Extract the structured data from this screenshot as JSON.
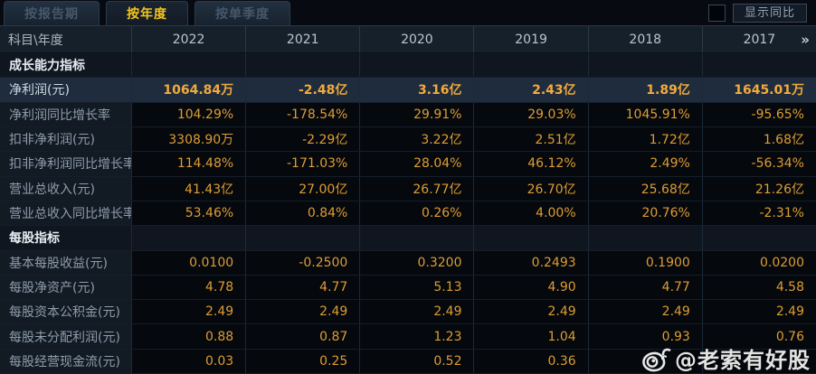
{
  "tabs": [
    {
      "label": "按报告期",
      "active": false
    },
    {
      "label": "按年度",
      "active": true
    },
    {
      "label": "按单季度",
      "active": false
    }
  ],
  "controls": {
    "show_yoy_label": "显示同比",
    "checkbox_checked": false
  },
  "table": {
    "corner_label": "科目\\年度",
    "years": [
      "2022",
      "2021",
      "2020",
      "2019",
      "2018",
      "2017"
    ],
    "more_icon": "»",
    "rows": [
      {
        "type": "section",
        "label": "成长能力指标",
        "values": [
          "",
          "",
          "",
          "",
          "",
          ""
        ]
      },
      {
        "type": "data",
        "highlight": true,
        "label": "净利润(元)",
        "values": [
          "1064.84万",
          "-2.48亿",
          "3.16亿",
          "2.43亿",
          "1.89亿",
          "1645.01万"
        ]
      },
      {
        "type": "data",
        "label": "净利润同比增长率",
        "values": [
          "104.29%",
          "-178.54%",
          "29.91%",
          "29.03%",
          "1045.91%",
          "-95.65%"
        ]
      },
      {
        "type": "data",
        "label": "扣非净利润(元)",
        "values": [
          "3308.90万",
          "-2.29亿",
          "3.22亿",
          "2.51亿",
          "1.72亿",
          "1.68亿"
        ]
      },
      {
        "type": "data",
        "label": "扣非净利润同比增长率",
        "values": [
          "114.48%",
          "-171.03%",
          "28.04%",
          "46.12%",
          "2.49%",
          "-56.34%"
        ]
      },
      {
        "type": "data",
        "label": "营业总收入(元)",
        "values": [
          "41.43亿",
          "27.00亿",
          "26.77亿",
          "26.70亿",
          "25.68亿",
          "21.26亿"
        ]
      },
      {
        "type": "data",
        "label": "营业总收入同比增长率",
        "values": [
          "53.46%",
          "0.84%",
          "0.26%",
          "4.00%",
          "20.76%",
          "-2.31%"
        ]
      },
      {
        "type": "section",
        "label": "每股指标",
        "values": [
          "",
          "",
          "",
          "",
          "",
          ""
        ]
      },
      {
        "type": "data",
        "label": "基本每股收益(元)",
        "values": [
          "0.0100",
          "-0.2500",
          "0.3200",
          "0.2493",
          "0.1900",
          "0.0200"
        ]
      },
      {
        "type": "data",
        "label": "每股净资产(元)",
        "values": [
          "4.78",
          "4.77",
          "5.13",
          "4.90",
          "4.77",
          "4.58"
        ]
      },
      {
        "type": "data",
        "label": "每股资本公积金(元)",
        "values": [
          "2.49",
          "2.49",
          "2.49",
          "2.49",
          "2.49",
          "2.49"
        ]
      },
      {
        "type": "data",
        "label": "每股未分配利润(元)",
        "values": [
          "0.88",
          "0.87",
          "1.23",
          "1.04",
          "0.93",
          "0.76"
        ]
      },
      {
        "type": "data",
        "label": "每股经营现金流(元)",
        "values": [
          "0.03",
          "0.25",
          "0.52",
          "0.36",
          "",
          ""
        ]
      }
    ]
  },
  "watermark": {
    "icon": "weibo-icon",
    "text": "@老索有好股"
  },
  "colors": {
    "value_gold": "#de9d33",
    "active_tab_text": "#f5c51d",
    "highlight_row_bg": "#1e2c3d",
    "header_bg": "#16202b",
    "label_col_bg": "#121a24",
    "data_cell_bg": "#05080d"
  }
}
